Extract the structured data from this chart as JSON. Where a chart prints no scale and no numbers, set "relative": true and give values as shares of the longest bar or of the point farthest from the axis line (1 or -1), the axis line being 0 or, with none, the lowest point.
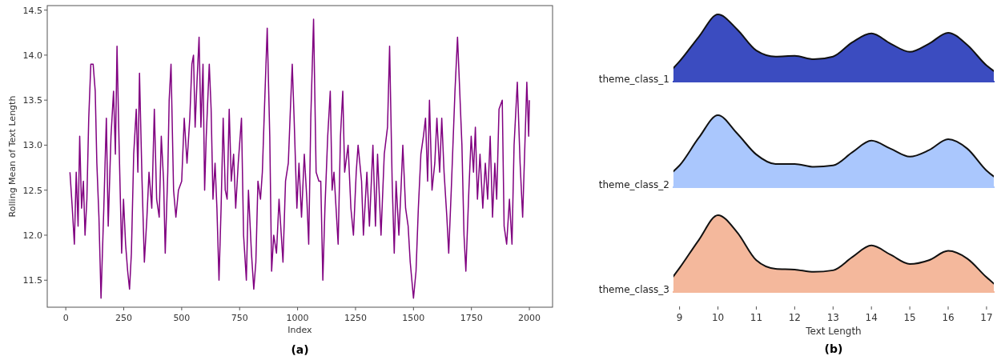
{
  "chart_data": [
    {
      "type": "line",
      "title": "(a)",
      "xlabel": "Index",
      "ylabel": "Rolling Mean of Text Length",
      "xlim": [
        -80,
        2100
      ],
      "ylim": [
        11.2,
        14.55
      ],
      "xticks": [
        0,
        250,
        500,
        750,
        1000,
        1250,
        1500,
        1750,
        2000
      ],
      "yticks": [
        {
          "value": 11.5,
          "label": "11.5"
        },
        {
          "value": 12,
          "label": "12.0"
        },
        {
          "value": 12.5,
          "label": "12.5"
        },
        {
          "value": 13,
          "label": "13.0"
        },
        {
          "value": 13.5,
          "label": "13.5"
        },
        {
          "value": 14,
          "label": "14.0"
        },
        {
          "value": 14.5,
          "label": "14.5"
        }
      ],
      "x": [
        18,
        28,
        37,
        45,
        53,
        60,
        68,
        76,
        83,
        91,
        99,
        108,
        118,
        127,
        134,
        143,
        152,
        164,
        175,
        183,
        195,
        206,
        214,
        221,
        230,
        241,
        249,
        258,
        267,
        275,
        283,
        293,
        304,
        311,
        318,
        329,
        339,
        350,
        359,
        371,
        382,
        392,
        403,
        412,
        422,
        429,
        440,
        446,
        454,
        465,
        475,
        486,
        500,
        511,
        523,
        535,
        544,
        551,
        558,
        566,
        575,
        583,
        592,
        599,
        606,
        619,
        627,
        635,
        644,
        652,
        661,
        670,
        679,
        688,
        696,
        705,
        714,
        724,
        733,
        744,
        758,
        767,
        779,
        788,
        801,
        811,
        820,
        829,
        840,
        848,
        857,
        869,
        880,
        888,
        897,
        909,
        920,
        937,
        948,
        960,
        969,
        977,
        985,
        997,
        1006,
        1017,
        1029,
        1040,
        1048,
        1057,
        1069,
        1080,
        1092,
        1100,
        1109,
        1118,
        1130,
        1141,
        1149,
        1157,
        1166,
        1175,
        1185,
        1195,
        1203,
        1218,
        1230,
        1241,
        1253,
        1261,
        1276,
        1284,
        1299,
        1310,
        1325,
        1336,
        1345,
        1360,
        1374,
        1388,
        1397,
        1408,
        1417,
        1425,
        1437,
        1446,
        1454,
        1466,
        1477,
        1486,
        1500,
        1511,
        1521,
        1532,
        1543,
        1552,
        1561,
        1569,
        1580,
        1592,
        1601,
        1613,
        1622,
        1632,
        1644,
        1652,
        1663,
        1679,
        1690,
        1698,
        1709,
        1718,
        1726,
        1739,
        1749,
        1759,
        1767,
        1776,
        1787,
        1799,
        1810,
        1820,
        1831,
        1841,
        1851,
        1859,
        1869,
        1883,
        1891,
        1902,
        1914,
        1925,
        1934,
        1948,
        1960,
        1971,
        1983,
        1989,
        1997,
        2000
      ],
      "series": [
        {
          "color": "#800080",
          "values": [
            12.7,
            12.3,
            11.9,
            12.7,
            12.1,
            13.1,
            12.3,
            12.6,
            12.0,
            12.4,
            13.3,
            13.9,
            13.9,
            13.6,
            12.8,
            12.2,
            11.3,
            12.3,
            13.3,
            12.1,
            13.1,
            13.6,
            12.9,
            14.1,
            13.0,
            11.8,
            12.4,
            11.9,
            11.6,
            11.4,
            11.8,
            12.9,
            13.4,
            12.7,
            13.8,
            12.6,
            11.7,
            12.2,
            12.7,
            12.3,
            13.4,
            12.4,
            12.2,
            13.1,
            12.6,
            11.8,
            12.7,
            13.5,
            13.9,
            12.5,
            12.2,
            12.5,
            12.6,
            13.3,
            12.8,
            13.3,
            13.9,
            14.0,
            13.2,
            13.7,
            14.2,
            13.2,
            13.9,
            12.5,
            13.1,
            13.9,
            13.4,
            12.4,
            12.8,
            12.3,
            11.5,
            12.3,
            13.3,
            12.5,
            12.4,
            13.4,
            12.6,
            12.9,
            12.3,
            12.8,
            13.3,
            12.0,
            11.5,
            12.5,
            11.8,
            11.4,
            11.7,
            12.6,
            12.4,
            12.7,
            13.4,
            14.3,
            13.1,
            11.6,
            12.0,
            11.8,
            12.4,
            11.7,
            12.6,
            12.8,
            13.4,
            13.9,
            13.3,
            12.3,
            12.8,
            12.2,
            12.9,
            12.4,
            11.9,
            13.3,
            14.4,
            12.7,
            12.6,
            12.6,
            11.5,
            12.3,
            13.1,
            13.6,
            12.5,
            12.7,
            12.3,
            11.9,
            13.1,
            13.6,
            12.7,
            13.0,
            12.3,
            12.0,
            12.7,
            13.0,
            12.6,
            12.0,
            12.7,
            12.1,
            13.0,
            12.1,
            12.9,
            12.0,
            12.9,
            13.2,
            14.1,
            12.6,
            11.8,
            12.6,
            12.0,
            12.5,
            13.0,
            12.3,
            12.1,
            11.7,
            11.3,
            11.6,
            12.3,
            12.9,
            13.1,
            13.3,
            12.6,
            13.5,
            12.5,
            12.8,
            13.3,
            12.7,
            13.3,
            12.7,
            12.2,
            11.8,
            12.5,
            13.6,
            14.2,
            13.7,
            13.0,
            12.0,
            11.6,
            12.5,
            13.1,
            12.7,
            13.2,
            12.4,
            12.9,
            12.3,
            12.8,
            12.4,
            13.1,
            12.2,
            12.8,
            12.4,
            13.4,
            13.5,
            12.1,
            11.9,
            12.4,
            11.9,
            13.0,
            13.7,
            12.8,
            12.2,
            13.2,
            13.7,
            13.1,
            13.5
          ]
        }
      ]
    },
    {
      "type": "area",
      "relative": true,
      "xlim": [
        8.82,
        17.21
      ],
      "x": [
        8.82,
        9,
        9.5,
        10,
        10.5,
        11,
        11.5,
        12,
        12.5,
        13,
        13.5,
        14,
        14.5,
        15,
        15.5,
        16,
        16.5,
        17,
        17.21
      ],
      "series": [
        {
          "name": "theme_class_1",
          "color": "#3b4cc0",
          "values": [
            0.2,
            0.31,
            0.67,
            1.0,
            0.78,
            0.47,
            0.38,
            0.39,
            0.34,
            0.38,
            0.59,
            0.72,
            0.57,
            0.45,
            0.57,
            0.73,
            0.55,
            0.25,
            0.16
          ]
        }
      ]
    },
    {
      "type": "area",
      "relative": true,
      "xlim": [
        8.82,
        17.21
      ],
      "x": [
        8.82,
        9,
        9.5,
        10,
        10.5,
        11,
        11.5,
        12,
        12.5,
        13,
        13.5,
        14,
        14.5,
        15,
        15.5,
        16,
        16.5,
        17,
        17.21
      ],
      "series": [
        {
          "name": "theme_class_2",
          "color": "#aac7fd",
          "values": [
            0.22,
            0.31,
            0.69,
            1.0,
            0.75,
            0.46,
            0.33,
            0.33,
            0.29,
            0.31,
            0.49,
            0.65,
            0.54,
            0.43,
            0.52,
            0.67,
            0.54,
            0.24,
            0.15
          ]
        }
      ]
    },
    {
      "type": "area",
      "relative": true,
      "title": "(b)",
      "xlabel": "Text Length",
      "xlim": [
        8.82,
        17.21
      ],
      "xticks": [
        9,
        10,
        11,
        12,
        13,
        14,
        15,
        16,
        17
      ],
      "x": [
        8.82,
        9,
        9.5,
        10,
        10.5,
        11,
        11.5,
        12,
        12.5,
        13,
        13.5,
        14,
        14.5,
        15,
        15.5,
        16,
        16.5,
        17,
        17.21
      ],
      "series": [
        {
          "name": "theme_class_3",
          "color": "#f4b89c",
          "values": [
            0.2,
            0.32,
            0.68,
            1.0,
            0.78,
            0.42,
            0.31,
            0.3,
            0.27,
            0.29,
            0.46,
            0.61,
            0.49,
            0.37,
            0.42,
            0.54,
            0.44,
            0.2,
            0.11
          ]
        }
      ]
    }
  ]
}
